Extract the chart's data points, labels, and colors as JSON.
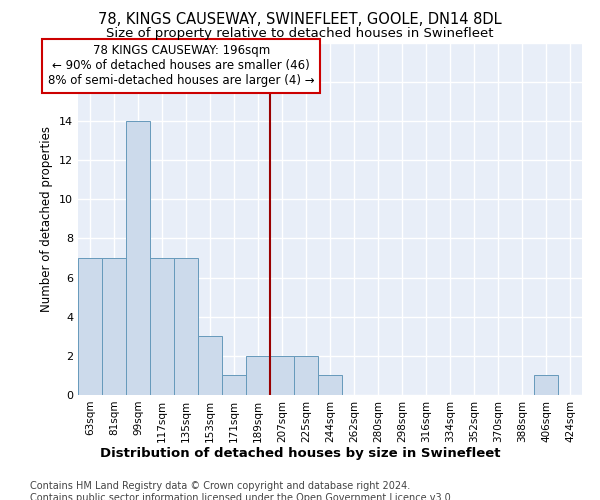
{
  "title1": "78, KINGS CAUSEWAY, SWINEFLEET, GOOLE, DN14 8DL",
  "title2": "Size of property relative to detached houses in Swinefleet",
  "xlabel": "Distribution of detached houses by size in Swinefleet",
  "ylabel": "Number of detached properties",
  "categories": [
    "63sqm",
    "81sqm",
    "99sqm",
    "117sqm",
    "135sqm",
    "153sqm",
    "171sqm",
    "189sqm",
    "207sqm",
    "225sqm",
    "244sqm",
    "262sqm",
    "280sqm",
    "298sqm",
    "316sqm",
    "334sqm",
    "352sqm",
    "370sqm",
    "388sqm",
    "406sqm",
    "424sqm"
  ],
  "values": [
    7,
    7,
    14,
    7,
    7,
    3,
    1,
    2,
    2,
    2,
    1,
    0,
    0,
    0,
    0,
    0,
    0,
    0,
    0,
    1,
    0
  ],
  "bar_color": "#ccdaeb",
  "bar_edge_color": "#6699bb",
  "vline_index": 7.5,
  "vline_color": "#990000",
  "annotation_text": "78 KINGS CAUSEWAY: 196sqm\n← 90% of detached houses are smaller (46)\n8% of semi-detached houses are larger (4) →",
  "annotation_box_edgecolor": "#cc0000",
  "ylim": [
    0,
    18
  ],
  "yticks": [
    0,
    2,
    4,
    6,
    8,
    10,
    12,
    14,
    16,
    18
  ],
  "bg_color": "#e8eef8",
  "grid_color": "#ffffff",
  "footer": "Contains HM Land Registry data © Crown copyright and database right 2024.\nContains public sector information licensed under the Open Government Licence v3.0.",
  "title1_fontsize": 10.5,
  "title2_fontsize": 9.5,
  "xlabel_fontsize": 9.5,
  "ylabel_fontsize": 8.5,
  "tick_fontsize": 7.5,
  "annotation_fontsize": 8.5,
  "footer_fontsize": 7.0
}
